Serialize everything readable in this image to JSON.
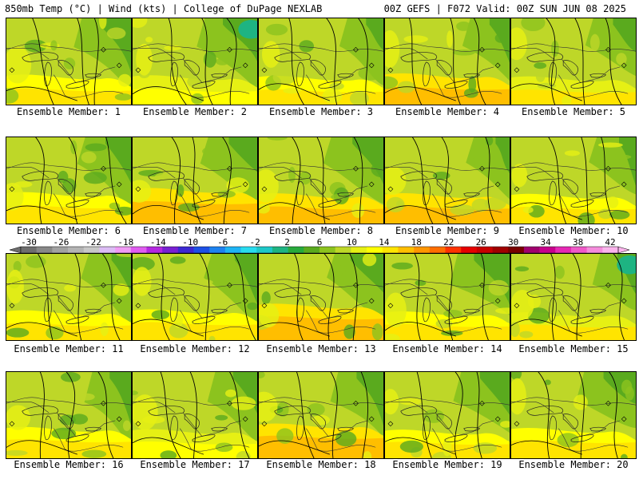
{
  "header": {
    "left": "850mb Temp (°C) | Wind (kts) | College of DuPage NEXLAB",
    "right": "00Z GEFS | F072 Valid: 00Z SUN JUN 08 2025"
  },
  "panels": [
    {
      "label": "Ensemble Member: 1",
      "warmth": 0.35
    },
    {
      "label": "Ensemble Member: 2",
      "warmth": 0.25
    },
    {
      "label": "Ensemble Member: 3",
      "warmth": 0.45
    },
    {
      "label": "Ensemble Member: 4",
      "warmth": 0.55
    },
    {
      "label": "Ensemble Member: 5",
      "warmth": 0.3
    },
    {
      "label": "Ensemble Member: 6",
      "warmth": 0.45
    },
    {
      "label": "Ensemble Member: 7",
      "warmth": 0.65
    },
    {
      "label": "Ensemble Member: 8",
      "warmth": 0.55
    },
    {
      "label": "Ensemble Member: 9",
      "warmth": 0.5
    },
    {
      "label": "Ensemble Member: 10",
      "warmth": 0.4
    },
    {
      "label": "Ensemble Member: 11",
      "warmth": 0.35
    },
    {
      "label": "Ensemble Member: 12",
      "warmth": 0.35
    },
    {
      "label": "Ensemble Member: 13",
      "warmth": 0.65
    },
    {
      "label": "Ensemble Member: 14",
      "warmth": 0.4
    },
    {
      "label": "Ensemble Member: 15",
      "warmth": 0.3
    },
    {
      "label": "Ensemble Member: 16",
      "warmth": 0.45
    },
    {
      "label": "Ensemble Member: 17",
      "warmth": 0.25
    },
    {
      "label": "Ensemble Member: 18",
      "warmth": 0.55
    },
    {
      "label": "Ensemble Member: 19",
      "warmth": 0.4
    },
    {
      "label": "Ensemble Member: 20",
      "warmth": 0.45
    }
  ],
  "colorbar": {
    "labels": [
      "-30",
      "-26",
      "-22",
      "-18",
      "-14",
      "-10",
      "-6",
      "-2",
      "2",
      "6",
      "10",
      "14",
      "18",
      "22",
      "26",
      "30",
      "34",
      "38",
      "42"
    ],
    "colors": [
      "#6e6e6e",
      "#888888",
      "#a2a2a2",
      "#b4b4b4",
      "#c8c8c8",
      "#dcbcf5",
      "#f09bf5",
      "#e05cf0",
      "#b428e0",
      "#7820d2",
      "#3c28d2",
      "#1e50e6",
      "#1e82f0",
      "#1eb4f5",
      "#28dcf0",
      "#1ec8c8",
      "#1eb482",
      "#28aa3c",
      "#5aaa1e",
      "#8cc31e",
      "#bed728",
      "#e6f014",
      "#ffff00",
      "#ffe400",
      "#ffbe00",
      "#ff9600",
      "#ff6e00",
      "#ff3200",
      "#e60000",
      "#c80000",
      "#a00000",
      "#780000",
      "#a0006e",
      "#c8008c",
      "#e628b4",
      "#f05ac8",
      "#f58cdc",
      "#fab4ec"
    ]
  }
}
